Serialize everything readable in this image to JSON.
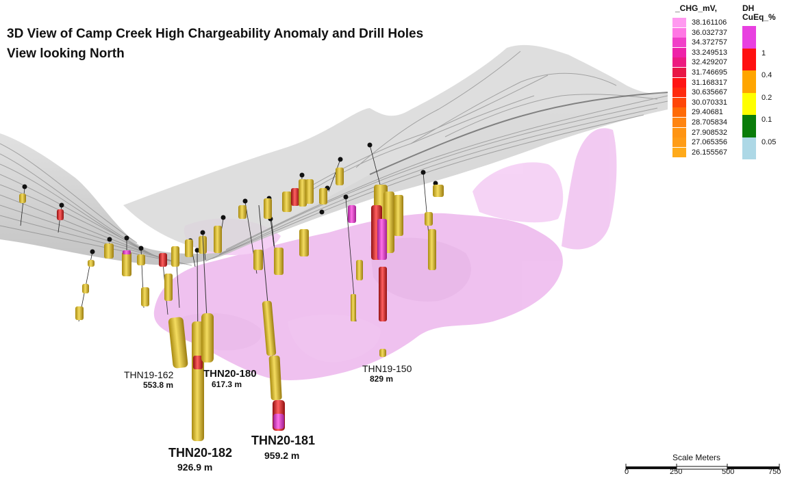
{
  "title": {
    "line1": "3D View of Camp Creek High Chargeability Anomaly and Drill Holes",
    "line2": "View looking North"
  },
  "drill_holes": [
    {
      "name": "THN19-162",
      "depth": "553.8 m"
    },
    {
      "name": "THN20-180",
      "depth": "617.3 m"
    },
    {
      "name": "THN20-182",
      "depth": "926.9 m"
    },
    {
      "name": "THN20-181",
      "depth": "959.2 m"
    },
    {
      "name": "THN19-150",
      "depth": "829 m"
    }
  ],
  "chg_legend": {
    "title": "_CHG_mV,",
    "values": [
      "38.161106",
      "36.032737",
      "34.372757",
      "33.249513",
      "32.429207",
      "31.746695",
      "31.168317",
      "30.635667",
      "30.070331",
      "29.40681",
      "28.705834",
      "27.908532",
      "27.065356",
      "26.155567"
    ],
    "colors": [
      "#ff99f0",
      "#ff77e4",
      "#f040c8",
      "#ee22a8",
      "#ec1a80",
      "#e81646",
      "#ff1414",
      "#ff2a0e",
      "#ff4608",
      "#ff6a06",
      "#ff8410",
      "#ff9412",
      "#ff9c16",
      "#ffaa1a"
    ]
  },
  "cueq_legend": {
    "title_line1": "DH",
    "title_line2": "CuEq_%",
    "bands": [
      {
        "color": "#e840e0",
        "label": ""
      },
      {
        "color": "#ff1010",
        "label": "1"
      },
      {
        "color": "#ffa500",
        "label": "0.4"
      },
      {
        "color": "#ffff00",
        "label": "0.2"
      },
      {
        "color": "#0a7d0a",
        "label": "0.1"
      },
      {
        "color": "#add8e6",
        "label": "0.05"
      }
    ]
  },
  "scale": {
    "title": "Scale Meters",
    "labels": [
      "0",
      "250",
      "500",
      "750"
    ]
  },
  "colors": {
    "anomaly": "#e088e0",
    "terrain": "#8c8c8c",
    "collar": "#111111",
    "hole_yellow": "#e0c040",
    "hole_red": "#e03030"
  }
}
